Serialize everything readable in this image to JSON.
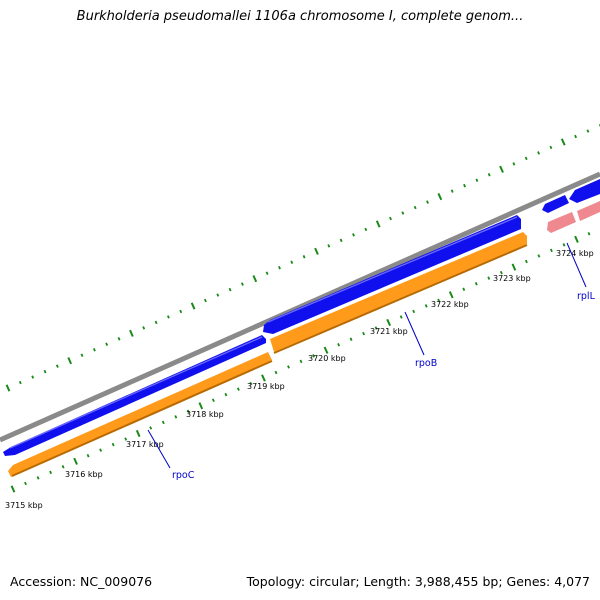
{
  "title": "Burkholderia pseudomallei 1106a chromosome I, complete genom...",
  "footer": {
    "accession": "Accession: NC_009076",
    "summary": "Topology: circular; Length: 3,988,455 bp; Genes: 4,077"
  },
  "colors": {
    "backbone": "#8a8a8a",
    "forward_gene": "#1010ee",
    "forward_gene_highlight": "#6a6aff",
    "cds": "#ff9a1a",
    "cds_shadow": "#b86a00",
    "rrna_gene": "#f08890",
    "tick": "#1a8a1a",
    "gene_label": "#0000cc"
  },
  "ticks": {
    "labels": [
      "3715 kbp",
      "3716 kbp",
      "3717 kbp",
      "3718 kbp",
      "3719 kbp",
      "3720 kbp",
      "3721 kbp",
      "3722 kbp",
      "3723 kbp",
      "3724 kbp"
    ]
  },
  "genes": [
    {
      "name": "rpoC",
      "strand": "forward",
      "type": "gene"
    },
    {
      "name": "rpoB",
      "strand": "forward",
      "type": "gene"
    },
    {
      "name": "rplL",
      "strand": "forward",
      "type": "gene"
    }
  ]
}
